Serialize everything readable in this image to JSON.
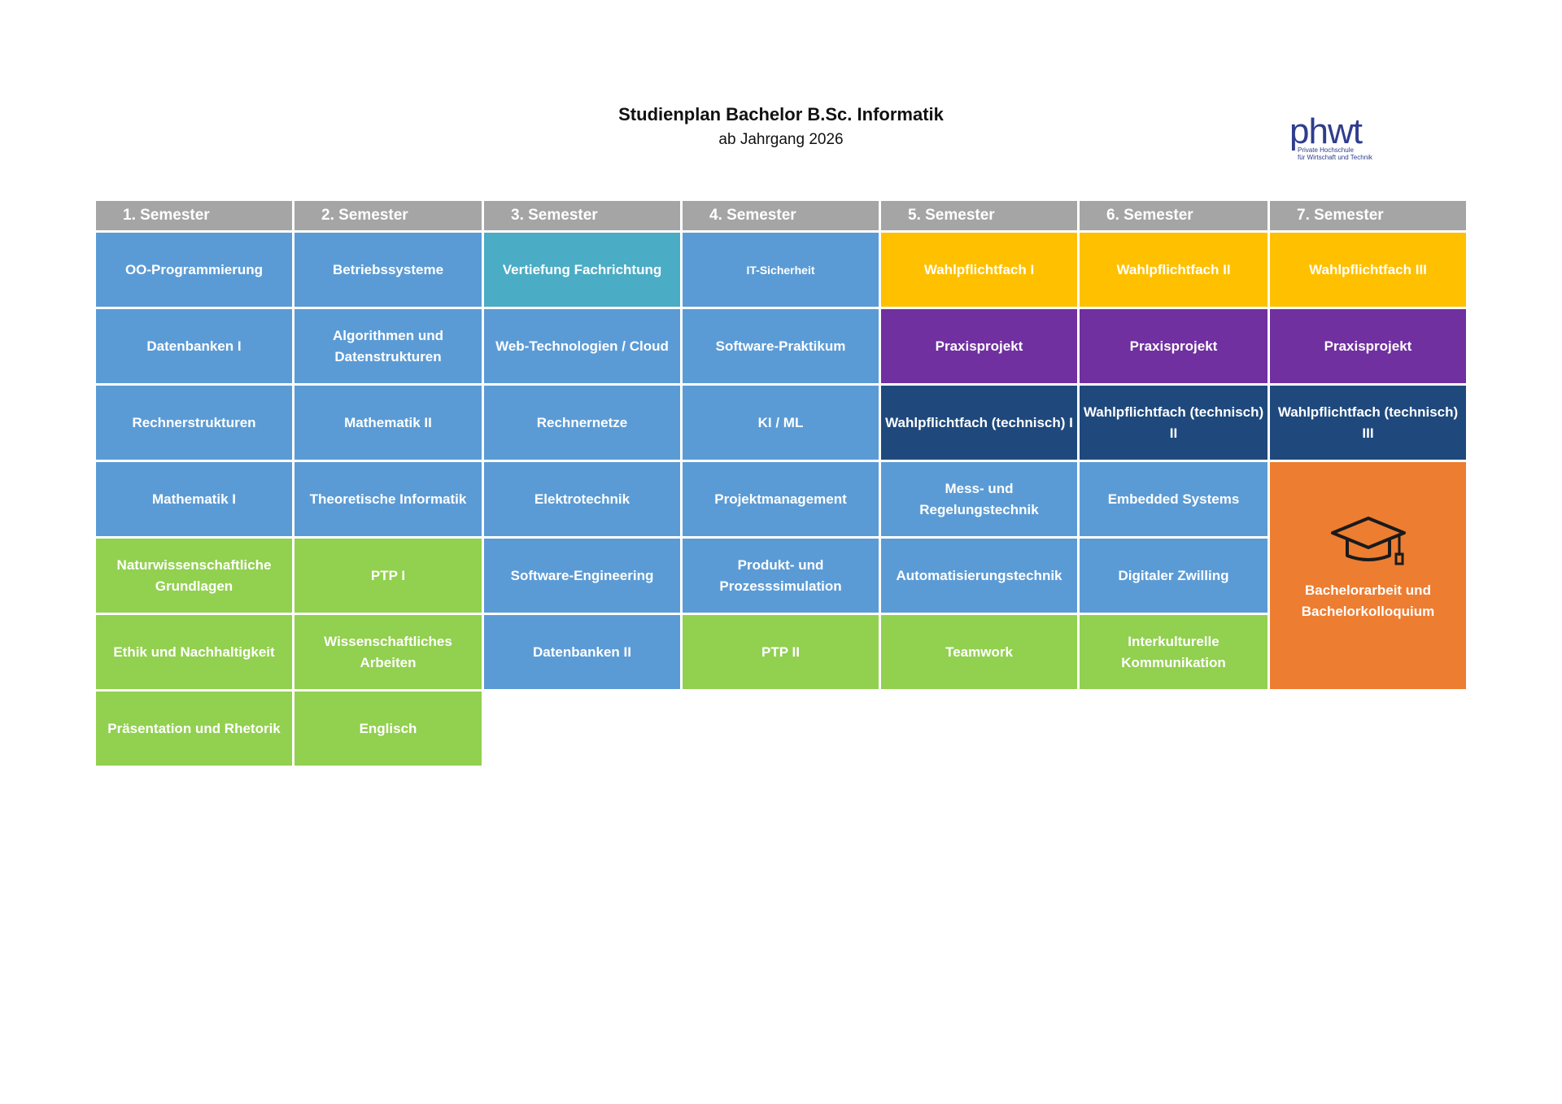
{
  "header": {
    "title": "Studienplan Bachelor B.Sc. Informatik",
    "subtitle": "ab Jahrgang 2026"
  },
  "logo": {
    "word": "phwt",
    "line1": "Private Hochschule",
    "line2": "für Wirtschaft und Technik"
  },
  "semesters": [
    "1. Semester",
    "2. Semester",
    "3. Semester",
    "4. Semester",
    "5. Semester",
    "6. Semester",
    "7. Semester"
  ],
  "colors": {
    "header": "#a5a5a5",
    "core_informatik": "#5b9bd5",
    "vertiefung": "#4bacc6",
    "wahlpflicht": "#ffc000",
    "praxisprojekt": "#7030a0",
    "wahlpflicht_technisch": "#1f497d",
    "general": "#92d050",
    "bachelorarbeit": "#ed7d31"
  },
  "modules": {
    "s1": [
      "OO-Programmierung",
      "Datenbanken I",
      "Rechnerstrukturen",
      "Mathematik I",
      "Naturwissenschaftliche Grundlagen",
      "Ethik und Nachhaltigkeit",
      "Präsentation und Rhetorik"
    ],
    "s2": [
      "Betriebssysteme",
      "Algorithmen und Datenstrukturen",
      "Mathematik II",
      "Theoretische Informatik",
      "PTP I",
      "Wissenschaftliches Arbeiten",
      "Englisch"
    ],
    "s3": [
      "Vertiefung Fachrichtung",
      "Web-Technologien / Cloud",
      "Rechnernetze",
      "Elektrotechnik",
      "Software-Engineering",
      "Datenbanken II"
    ],
    "s4": [
      "IT-Sicherheit",
      "Software-Praktikum",
      "KI / ML",
      "Projektmanagement",
      "Produkt- und Prozesssimulation",
      "PTP II"
    ],
    "s5": [
      "Wahlpflichtfach I",
      "Praxisprojekt",
      "Wahlpflichtfach (technisch) I",
      "Mess- und Regelungstechnik",
      "Automatisierungstechnik",
      "Teamwork"
    ],
    "s6": [
      "Wahlpflichtfach II",
      "Praxisprojekt",
      "Wahlpflichtfach (technisch) II",
      "Embedded Systems",
      "Digitaler Zwilling",
      "Interkulturelle Kommunikation"
    ],
    "s7": [
      "Wahlpflichtfach III",
      "Praxisprojekt",
      "Wahlpflichtfach (technisch) III",
      "Bachelorarbeit und Bachelorkolloquium"
    ]
  },
  "icons": {
    "thesis": "graduation-cap-icon"
  }
}
